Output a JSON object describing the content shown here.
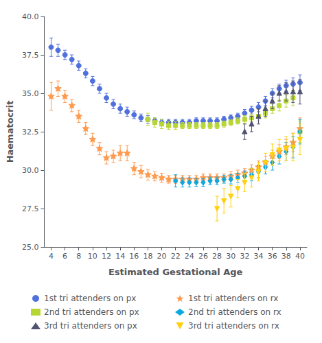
{
  "chart_data": {
    "type": "scatter",
    "xlabel": "Estimated Gestational Age",
    "ylabel": "Haematocrit",
    "x": [
      4,
      5,
      6,
      7,
      8,
      9,
      10,
      11,
      12,
      13,
      14,
      15,
      16,
      17,
      18,
      19,
      20,
      21,
      22,
      23,
      24,
      25,
      26,
      27,
      28,
      29,
      30,
      31,
      32,
      33,
      34,
      35,
      36,
      37,
      38,
      39,
      40
    ],
    "xlim": [
      3,
      41
    ],
    "xticks": [
      4,
      6,
      8,
      10,
      12,
      14,
      16,
      18,
      20,
      22,
      24,
      26,
      28,
      30,
      32,
      34,
      36,
      38,
      40
    ],
    "ylim": [
      25.0,
      40.0
    ],
    "yticks": [
      {
        "value": 25.0,
        "label": "25.0"
      },
      27.5,
      {
        "value": 30.0,
        "label": "30.0"
      },
      32.5,
      {
        "value": 35.0,
        "label": "35.0"
      },
      37.5,
      {
        "value": 40.0,
        "label": "40.0"
      }
    ],
    "grid": false,
    "legend": "bottom",
    "series": [
      {
        "name": "1st tri attenders on px",
        "marker": "circle",
        "values": [
          38.0,
          37.8,
          37.5,
          37.2,
          36.8,
          36.3,
          35.8,
          35.3,
          34.7,
          34.3,
          34.0,
          33.8,
          33.6,
          33.4,
          33.3,
          33.2,
          33.1,
          33.1,
          33.1,
          33.1,
          33.1,
          33.2,
          33.2,
          33.2,
          33.2,
          33.3,
          33.4,
          33.5,
          33.7,
          33.9,
          34.1,
          34.5,
          35.0,
          35.3,
          35.5,
          35.6,
          35.7
        ],
        "errors": [
          0.6,
          0.4,
          0.3,
          0.3,
          0.3,
          0.3,
          0.3,
          0.3,
          0.3,
          0.3,
          0.3,
          0.3,
          0.25,
          0.25,
          0.25,
          0.2,
          0.2,
          0.2,
          0.2,
          0.2,
          0.2,
          0.2,
          0.2,
          0.2,
          0.2,
          0.2,
          0.2,
          0.2,
          0.25,
          0.25,
          0.3,
          0.3,
          0.3,
          0.3,
          0.35,
          0.4,
          0.5
        ]
      },
      {
        "name": "2nd tri attenders on px",
        "marker": "square",
        "values": [
          null,
          null,
          null,
          null,
          null,
          null,
          null,
          null,
          null,
          null,
          null,
          null,
          null,
          null,
          33.3,
          33.1,
          33.0,
          32.9,
          32.9,
          32.9,
          32.9,
          32.9,
          32.9,
          32.9,
          32.9,
          33.0,
          33.1,
          33.2,
          33.3,
          33.4,
          33.5,
          33.7,
          34.0,
          34.2,
          34.5,
          34.7,
          32.5
        ],
        "errors": [
          null,
          null,
          null,
          null,
          null,
          null,
          null,
          null,
          null,
          null,
          null,
          null,
          null,
          null,
          0.4,
          0.3,
          0.3,
          0.25,
          0.25,
          0.2,
          0.2,
          0.2,
          0.2,
          0.2,
          0.2,
          0.2,
          0.2,
          0.2,
          0.25,
          0.25,
          0.3,
          0.3,
          0.3,
          0.35,
          0.4,
          0.5,
          0.7
        ]
      },
      {
        "name": "3rd tri attenders on px",
        "marker": "triangle",
        "values": [
          null,
          null,
          null,
          null,
          null,
          null,
          null,
          null,
          null,
          null,
          null,
          null,
          null,
          null,
          null,
          null,
          null,
          null,
          null,
          null,
          null,
          null,
          null,
          null,
          null,
          null,
          null,
          null,
          32.5,
          33.0,
          33.5,
          34.0,
          34.5,
          35.0,
          35.1,
          35.1,
          35.1
        ],
        "errors": [
          null,
          null,
          null,
          null,
          null,
          null,
          null,
          null,
          null,
          null,
          null,
          null,
          null,
          null,
          null,
          null,
          null,
          null,
          null,
          null,
          null,
          null,
          null,
          null,
          null,
          null,
          null,
          null,
          0.5,
          0.5,
          0.5,
          0.5,
          0.5,
          0.5,
          0.6,
          0.7,
          0.8
        ]
      },
      {
        "name": "1st tri attenders on rx",
        "marker": "star",
        "values": [
          34.8,
          35.3,
          34.8,
          34.2,
          33.5,
          32.7,
          32.0,
          31.4,
          30.8,
          30.9,
          31.1,
          31.1,
          30.1,
          29.9,
          29.7,
          29.6,
          29.5,
          29.4,
          29.4,
          29.4,
          29.4,
          29.4,
          29.5,
          29.5,
          29.5,
          29.5,
          29.6,
          29.7,
          29.8,
          30.0,
          30.2,
          30.5,
          30.9,
          31.2,
          31.5,
          31.8,
          32.7
        ],
        "errors": [
          0.9,
          0.5,
          0.4,
          0.4,
          0.4,
          0.4,
          0.4,
          0.4,
          0.4,
          0.4,
          0.5,
          0.5,
          0.4,
          0.4,
          0.35,
          0.3,
          0.3,
          0.25,
          0.25,
          0.25,
          0.25,
          0.25,
          0.25,
          0.25,
          0.25,
          0.25,
          0.3,
          0.3,
          0.3,
          0.35,
          0.4,
          0.4,
          0.4,
          0.45,
          0.5,
          0.6,
          0.7
        ]
      },
      {
        "name": "2nd tri attenders on rx",
        "marker": "diamond",
        "values": [
          null,
          null,
          null,
          null,
          null,
          null,
          null,
          null,
          null,
          null,
          null,
          null,
          null,
          null,
          null,
          null,
          null,
          null,
          29.3,
          29.2,
          29.2,
          29.2,
          29.2,
          29.3,
          29.3,
          29.4,
          29.4,
          29.5,
          29.6,
          29.7,
          29.9,
          30.2,
          30.5,
          30.9,
          31.2,
          31.5,
          32.5
        ],
        "errors": [
          null,
          null,
          null,
          null,
          null,
          null,
          null,
          null,
          null,
          null,
          null,
          null,
          null,
          null,
          null,
          null,
          null,
          null,
          0.4,
          0.3,
          0.3,
          0.25,
          0.25,
          0.25,
          0.25,
          0.25,
          0.3,
          0.3,
          0.35,
          0.4,
          0.4,
          0.45,
          0.5,
          0.5,
          0.6,
          0.7,
          0.8
        ]
      },
      {
        "name": "3rd tri attenders on rx",
        "marker": "triangle-down",
        "values": [
          null,
          null,
          null,
          null,
          null,
          null,
          null,
          null,
          null,
          null,
          null,
          null,
          null,
          null,
          null,
          null,
          null,
          null,
          null,
          null,
          null,
          null,
          null,
          null,
          27.5,
          28.0,
          28.3,
          28.8,
          29.2,
          29.5,
          29.9,
          30.5,
          31.0,
          31.3,
          31.4,
          31.5,
          32.0
        ],
        "errors": [
          null,
          null,
          null,
          null,
          null,
          null,
          null,
          null,
          null,
          null,
          null,
          null,
          null,
          null,
          null,
          null,
          null,
          null,
          null,
          null,
          null,
          null,
          null,
          null,
          0.8,
          0.8,
          0.7,
          0.6,
          0.6,
          0.6,
          0.6,
          0.6,
          0.7,
          0.7,
          0.8,
          0.9,
          1.0
        ]
      }
    ]
  }
}
